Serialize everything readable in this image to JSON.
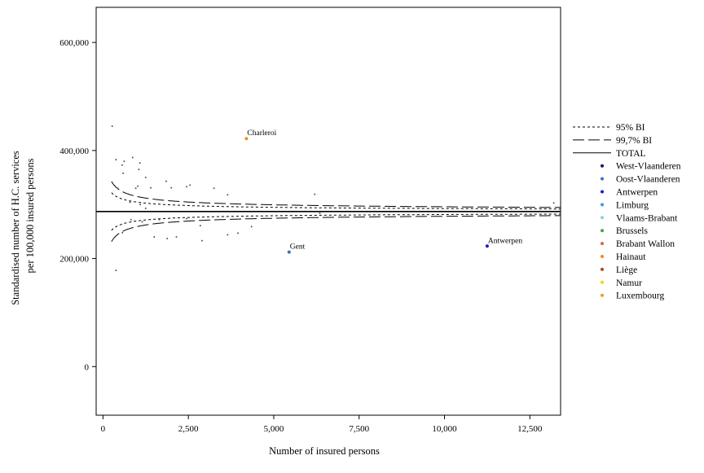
{
  "chart_data": {
    "type": "scatter",
    "title": "",
    "xlabel": "Number of insured persons",
    "ylabel": [
      "Standardised number of H.C. services",
      "per 100,000 insured persons"
    ],
    "xlim": [
      -200,
      13400
    ],
    "ylim": [
      -90000,
      665000
    ],
    "x_ticks": [
      0,
      2500,
      5000,
      7500,
      10000,
      12500
    ],
    "x_tick_labels": [
      "0",
      "2,500",
      "5,000",
      "7,500",
      "10,000",
      "12,500"
    ],
    "y_ticks": [
      0,
      200000,
      400000,
      600000
    ],
    "y_tick_labels": [
      "0",
      "200,000",
      "400,000",
      "600,000"
    ],
    "grid": false,
    "legend_position": "right",
    "total": 287000,
    "bands": {
      "bi95_const": 550000,
      "bi997_const": 880000,
      "x_start": 250
    },
    "legend": [
      {
        "label": "95% BI",
        "kind": "line",
        "style": "dotted"
      },
      {
        "label": "99,7% BI",
        "kind": "line",
        "style": "dashed"
      },
      {
        "label": "TOTAL",
        "kind": "line",
        "style": "solid"
      },
      {
        "label": "West-Vlaanderen",
        "kind": "point",
        "color": "#0d1a6e"
      },
      {
        "label": "Oost-Vlaanderen",
        "kind": "point",
        "color": "#3a6fc4"
      },
      {
        "label": "Antwerpen",
        "kind": "point",
        "color": "#1a1adc"
      },
      {
        "label": "Limburg",
        "kind": "point",
        "color": "#3a9ad9"
      },
      {
        "label": "Vlaams-Brabant",
        "kind": "point",
        "color": "#7fd4e6"
      },
      {
        "label": "Brussels",
        "kind": "point",
        "color": "#3aa84a"
      },
      {
        "label": "Brabant Wallon",
        "kind": "point",
        "color": "#d8663a"
      },
      {
        "label": "Hainaut",
        "kind": "point",
        "color": "#f08a1a"
      },
      {
        "label": "Liège",
        "kind": "point",
        "color": "#b0452a"
      },
      {
        "label": "Namur",
        "kind": "point",
        "color": "#f2d21a"
      },
      {
        "label": "Luxembourg",
        "kind": "point",
        "color": "#e8a020"
      }
    ],
    "points": [
      {
        "x": 4200,
        "y": 422000,
        "color": "#f08a1a",
        "label": "Charleroi"
      },
      {
        "x": 5450,
        "y": 212000,
        "color": "#3a6fc4",
        "label": "Gent"
      },
      {
        "x": 11250,
        "y": 223000,
        "color": "#1a1adc",
        "label": "Antwerpen"
      },
      {
        "x": 270,
        "y": 445000,
        "color": "#555555",
        "label": ""
      },
      {
        "x": 380,
        "y": 383000,
        "color": "#555555",
        "label": ""
      },
      {
        "x": 560,
        "y": 373000,
        "color": "#555555",
        "label": ""
      },
      {
        "x": 620,
        "y": 380000,
        "color": "#555555",
        "label": ""
      },
      {
        "x": 870,
        "y": 387000,
        "color": "#555555",
        "label": ""
      },
      {
        "x": 1080,
        "y": 377000,
        "color": "#555555",
        "label": ""
      },
      {
        "x": 590,
        "y": 358000,
        "color": "#555555",
        "label": ""
      },
      {
        "x": 1050,
        "y": 365000,
        "color": "#555555",
        "label": ""
      },
      {
        "x": 1250,
        "y": 350000,
        "color": "#555555",
        "label": ""
      },
      {
        "x": 1850,
        "y": 343000,
        "color": "#555555",
        "label": ""
      },
      {
        "x": 430,
        "y": 330000,
        "color": "#555555",
        "label": ""
      },
      {
        "x": 960,
        "y": 330000,
        "color": "#555555",
        "label": ""
      },
      {
        "x": 1020,
        "y": 334000,
        "color": "#555555",
        "label": ""
      },
      {
        "x": 1400,
        "y": 331000,
        "color": "#555555",
        "label": ""
      },
      {
        "x": 2000,
        "y": 331000,
        "color": "#555555",
        "label": ""
      },
      {
        "x": 2450,
        "y": 333000,
        "color": "#555555",
        "label": ""
      },
      {
        "x": 2550,
        "y": 336000,
        "color": "#555555",
        "label": ""
      },
      {
        "x": 3250,
        "y": 330000,
        "color": "#555555",
        "label": ""
      },
      {
        "x": 3650,
        "y": 318000,
        "color": "#555555",
        "label": ""
      },
      {
        "x": 6200,
        "y": 319000,
        "color": "#555555",
        "label": ""
      },
      {
        "x": 790,
        "y": 304000,
        "color": "#555555",
        "label": ""
      },
      {
        "x": 1090,
        "y": 300000,
        "color": "#555555",
        "label": ""
      },
      {
        "x": 1250,
        "y": 293000,
        "color": "#555555",
        "label": ""
      },
      {
        "x": 6350,
        "y": 284000,
        "color": "#555555",
        "label": ""
      },
      {
        "x": 13200,
        "y": 303000,
        "color": "#555555",
        "label": ""
      },
      {
        "x": 820,
        "y": 272000,
        "color": "#555555",
        "label": ""
      },
      {
        "x": 1150,
        "y": 268000,
        "color": "#555555",
        "label": ""
      },
      {
        "x": 1650,
        "y": 272000,
        "color": "#555555",
        "label": ""
      },
      {
        "x": 2450,
        "y": 274000,
        "color": "#555555",
        "label": ""
      },
      {
        "x": 2850,
        "y": 261000,
        "color": "#555555",
        "label": ""
      },
      {
        "x": 4350,
        "y": 259000,
        "color": "#555555",
        "label": ""
      },
      {
        "x": 570,
        "y": 248000,
        "color": "#555555",
        "label": ""
      },
      {
        "x": 1500,
        "y": 240000,
        "color": "#555555",
        "label": ""
      },
      {
        "x": 1880,
        "y": 237000,
        "color": "#555555",
        "label": ""
      },
      {
        "x": 2150,
        "y": 240000,
        "color": "#555555",
        "label": ""
      },
      {
        "x": 2900,
        "y": 233000,
        "color": "#555555",
        "label": ""
      },
      {
        "x": 3650,
        "y": 244000,
        "color": "#555555",
        "label": ""
      },
      {
        "x": 3950,
        "y": 247000,
        "color": "#555555",
        "label": ""
      },
      {
        "x": 380,
        "y": 178000,
        "color": "#555555",
        "label": ""
      }
    ]
  }
}
